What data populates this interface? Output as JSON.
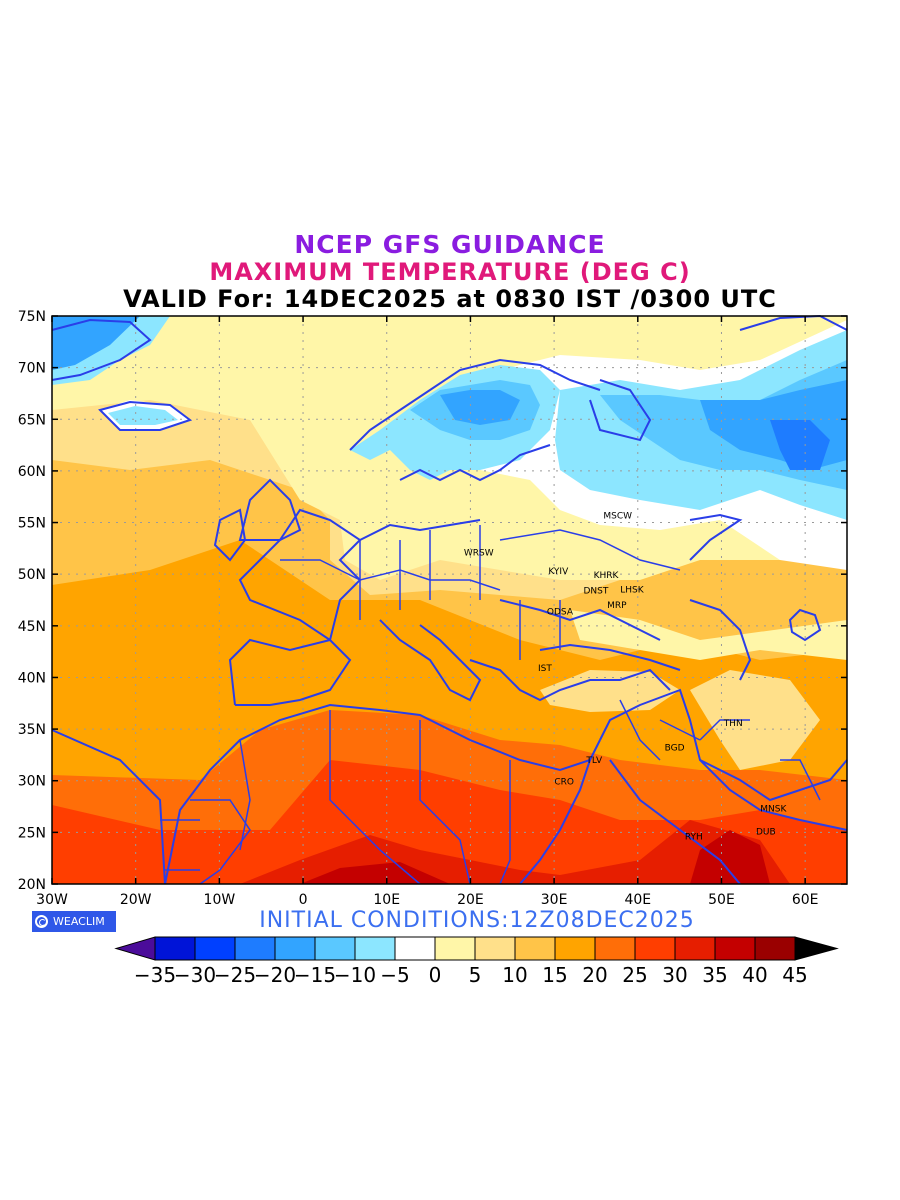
{
  "title_line1": "NCEP GFS GUIDANCE",
  "title_line2": "MAXIMUM TEMPERATURE (DEG C)",
  "title_line3": "VALID For: 14DEC2025 at 0830 IST /0300 UTC",
  "initial_conditions": "INITIAL  CONDITIONS:12Z08DEC2025",
  "logo_text": "WEACLIM",
  "lat_labels": [
    "75N",
    "70N",
    "65N",
    "60N",
    "55N",
    "50N",
    "45N",
    "40N",
    "35N",
    "30N",
    "25N",
    "20N"
  ],
  "lon_labels": [
    "30W",
    "20W",
    "10W",
    "0",
    "10E",
    "20E",
    "30E",
    "40E",
    "50E",
    "60E"
  ],
  "colorbar": {
    "labels": [
      "-35",
      "-30",
      "-25",
      "-20",
      "-15",
      "-10",
      "-5",
      "0",
      "5",
      "10",
      "15",
      "20",
      "25",
      "30",
      "35",
      "40",
      "45"
    ],
    "colors": [
      "#4b0c9a",
      "#0014d8",
      "#0040ff",
      "#1e7cff",
      "#32a4ff",
      "#5ac8ff",
      "#8ce6ff",
      "#ffffff",
      "#fff6a8",
      "#ffe08a",
      "#ffc448",
      "#ffa400",
      "#ff6e08",
      "#ff3e00",
      "#e61e00",
      "#c40000",
      "#9a0000",
      "#000000"
    ]
  },
  "colors": {
    "coastline": "#2a3ee8",
    "grid": "#9a9a9a"
  },
  "cities": [
    {
      "name": "MSCW",
      "lon": 37.6,
      "lat": 55.8
    },
    {
      "name": "WRSW",
      "lon": 21.0,
      "lat": 52.2
    },
    {
      "name": "KYIV",
      "lon": 30.5,
      "lat": 50.4
    },
    {
      "name": "KHRK",
      "lon": 36.2,
      "lat": 50.0
    },
    {
      "name": "DNST",
      "lon": 35.0,
      "lat": 48.5
    },
    {
      "name": "LHSK",
      "lon": 39.3,
      "lat": 48.6
    },
    {
      "name": "MRP",
      "lon": 37.5,
      "lat": 47.1
    },
    {
      "name": "ODSA",
      "lon": 30.7,
      "lat": 46.5
    },
    {
      "name": "IST",
      "lon": 28.9,
      "lat": 41.0
    },
    {
      "name": "THN",
      "lon": 51.4,
      "lat": 35.7
    },
    {
      "name": "BGD",
      "lon": 44.4,
      "lat": 33.3
    },
    {
      "name": "TLV",
      "lon": 34.8,
      "lat": 32.1
    },
    {
      "name": "CRO",
      "lon": 31.2,
      "lat": 30.0
    },
    {
      "name": "MNSK",
      "lon": 56.2,
      "lat": 27.4
    },
    {
      "name": "RYH",
      "lon": 46.7,
      "lat": 24.7
    },
    {
      "name": "DUB",
      "lon": 55.3,
      "lat": 25.2
    }
  ]
}
